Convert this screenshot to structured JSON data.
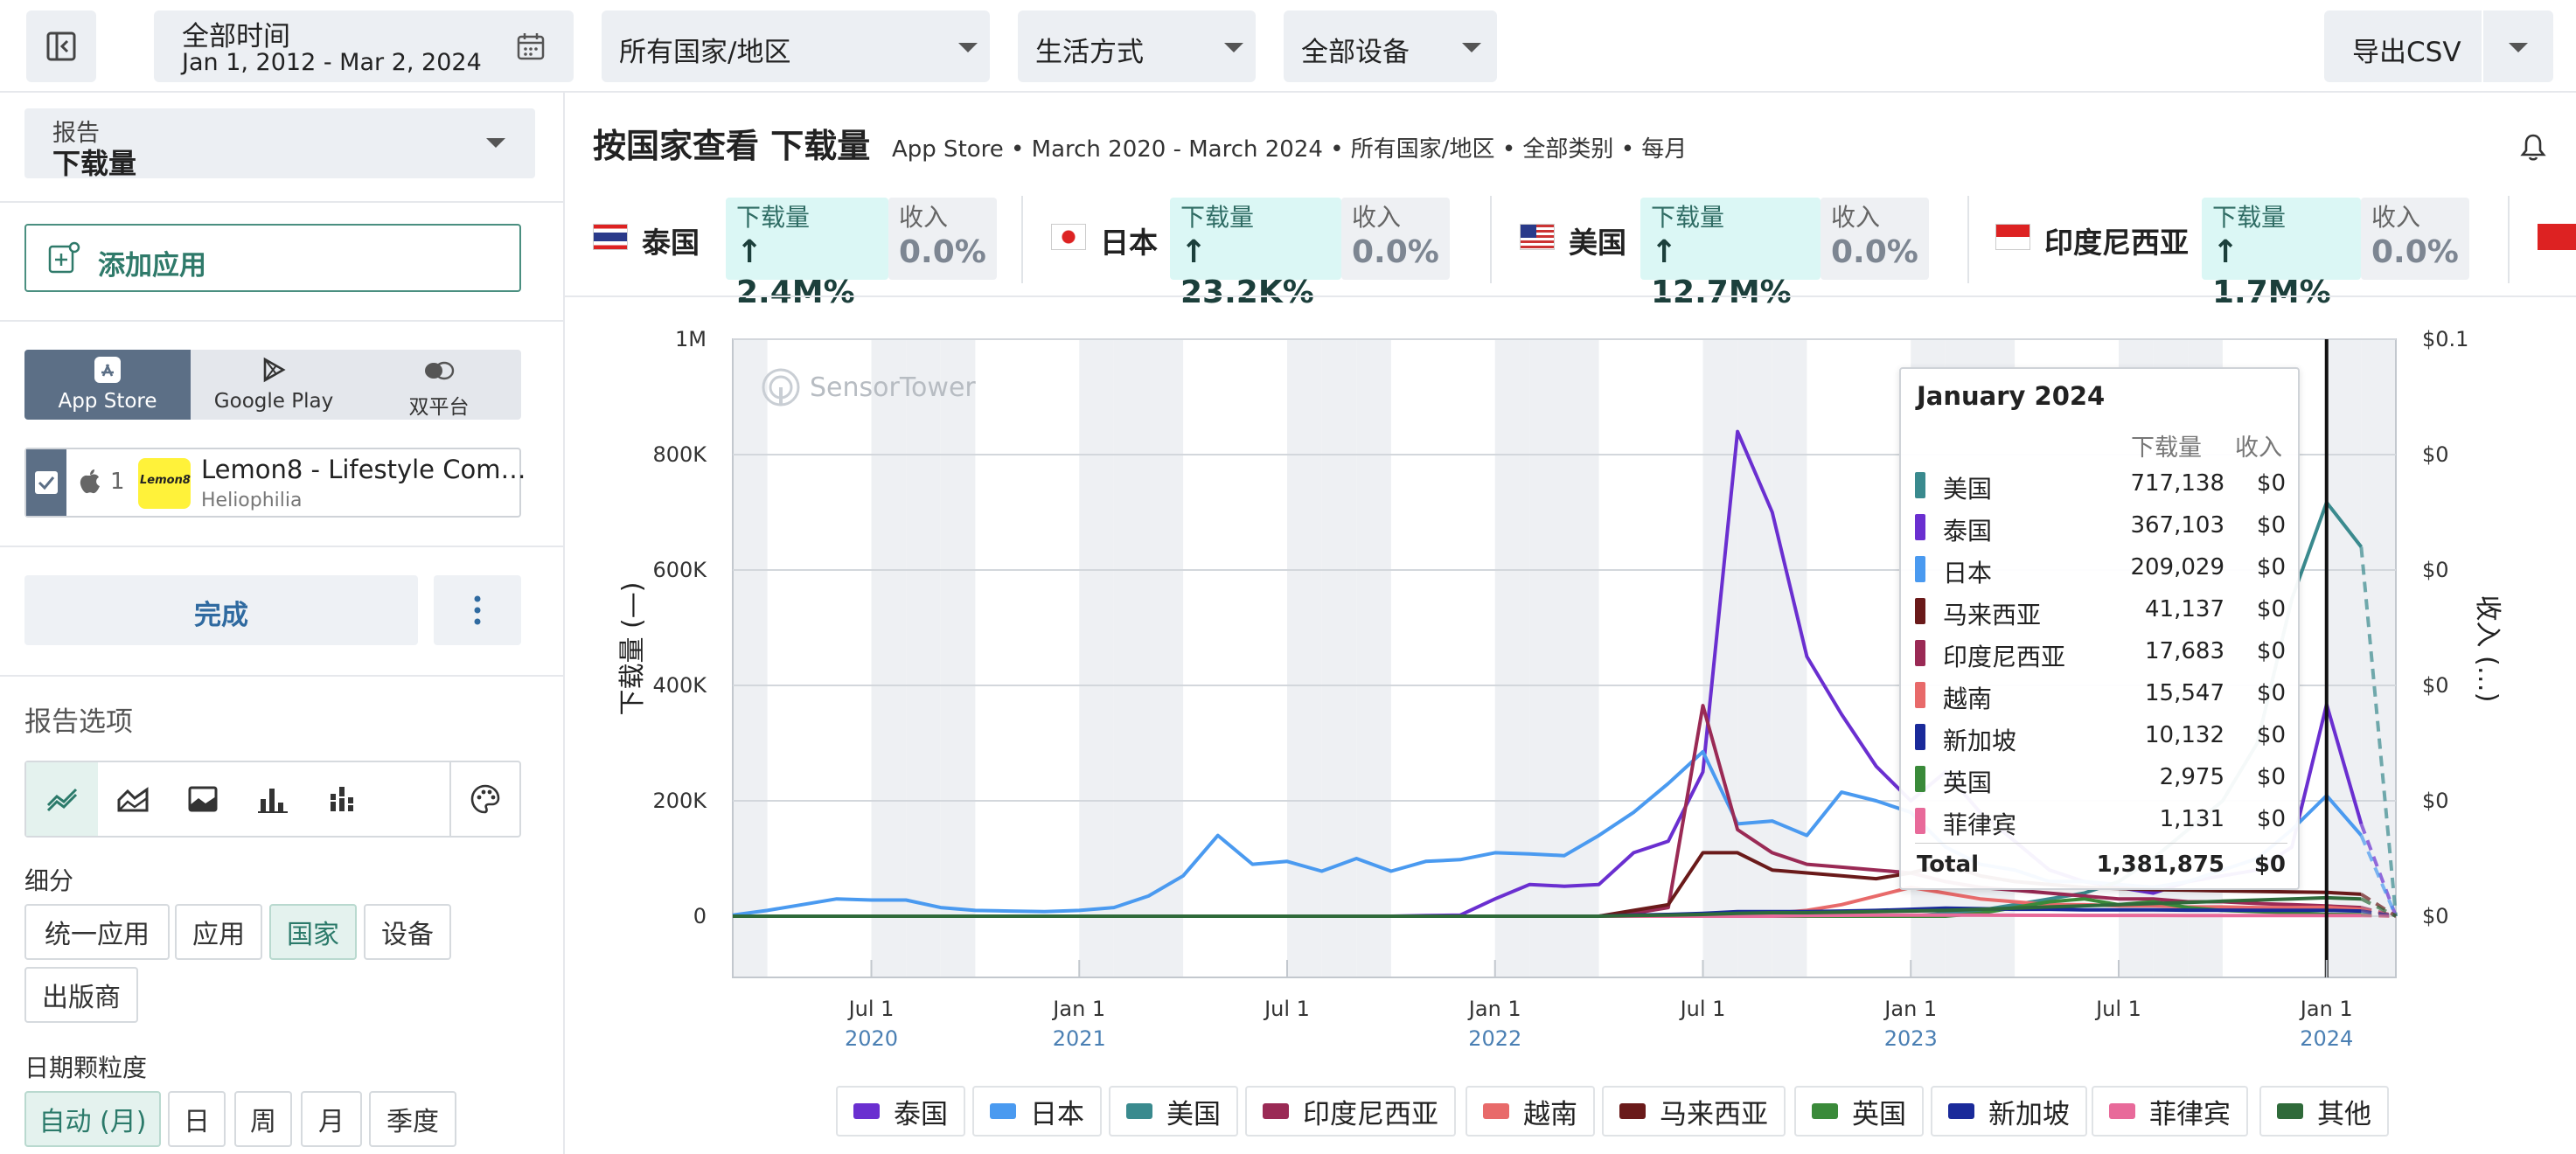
{
  "topbar": {
    "date_label": "全部时间",
    "date_range": "Jan 1, 2012 - Mar 2, 2024",
    "country": "所有国家/地区",
    "category": "生活方式",
    "devices": "全部设备",
    "export": "导出CSV"
  },
  "sidebar": {
    "report_label": "报告",
    "report_value": "下载量",
    "add_app": "添加应用",
    "platforms": [
      "App Store",
      "Google Play",
      "双平台"
    ],
    "app": {
      "index": "1",
      "name": "Lemon8 - Lifestyle Com…",
      "publisher": "Heliophilia",
      "logo_text": "Lemon8"
    },
    "done": "完成",
    "options_title": "报告选项",
    "breakdown_title": "细分",
    "breakdown": [
      "统一应用",
      "应用",
      "国家",
      "设备",
      "出版商"
    ],
    "breakdown_selected": "国家",
    "granularity_title": "日期颗粒度",
    "granularity": [
      "自动 (月)",
      "日",
      "周",
      "月",
      "季度"
    ],
    "granularity_selected": "自动 (月)"
  },
  "header": {
    "title": "按国家查看 下载量",
    "subtitle": "App Store • March 2020 - March 2024 • 所有国家/地区 • 全部类别 • 每月"
  },
  "kpis": [
    {
      "country": "泰国",
      "dl_label": "下载量",
      "dl_value": "2.4M%",
      "rev_label": "收入",
      "rev_value": "0.0%"
    },
    {
      "country": "日本",
      "dl_label": "下载量",
      "dl_value": "23.2K%",
      "rev_label": "收入",
      "rev_value": "0.0%"
    },
    {
      "country": "美国",
      "dl_label": "下载量",
      "dl_value": "12.7M%",
      "rev_label": "收入",
      "rev_value": "0.0%"
    },
    {
      "country": "印度尼西亚",
      "dl_label": "下载量",
      "dl_value": "1.7M%",
      "rev_label": "收入",
      "rev_value": "0.0%"
    }
  ],
  "watermark": "SensorTower",
  "colors": {
    "泰国": "#6a2fd0",
    "日本": "#4a9af0",
    "美国": "#3a8a8e",
    "印度尼西亚": "#9a2a55",
    "越南": "#e86a6a",
    "马来西亚": "#6a1a1a",
    "英国": "#3a8a3a",
    "新加坡": "#1a2a9a",
    "菲律宾": "#e86a9a",
    "其他": "#2f6a3a"
  },
  "chart_data": {
    "type": "line",
    "title": "",
    "ylabel": "下载量 (—)",
    "y2label": "收入 (…)",
    "ylim": [
      0,
      1000000
    ],
    "yticks": [
      "0",
      "200K",
      "400K",
      "600K",
      "800K",
      "1M"
    ],
    "y2ticks": [
      "$0",
      "$0",
      "$0",
      "$0",
      "$0",
      "$0.1"
    ],
    "xticks": [
      {
        "label": "Jul 1",
        "year": "2020"
      },
      {
        "label": "Jan 1",
        "year": "2021"
      },
      {
        "label": "Jul 1",
        "year": ""
      },
      {
        "label": "Jan 1",
        "year": "2022"
      },
      {
        "label": "Jul 1",
        "year": ""
      },
      {
        "label": "Jan 1",
        "year": "2023"
      },
      {
        "label": "Jul 1",
        "year": ""
      },
      {
        "label": "Jan 1",
        "year": "2024"
      }
    ],
    "x": [
      "2020-03",
      "2020-04",
      "2020-05",
      "2020-06",
      "2020-07",
      "2020-08",
      "2020-09",
      "2020-10",
      "2020-11",
      "2020-12",
      "2021-01",
      "2021-02",
      "2021-03",
      "2021-04",
      "2021-05",
      "2021-06",
      "2021-07",
      "2021-08",
      "2021-09",
      "2021-10",
      "2021-11",
      "2021-12",
      "2022-01",
      "2022-02",
      "2022-03",
      "2022-04",
      "2022-05",
      "2022-06",
      "2022-07",
      "2022-08",
      "2022-09",
      "2022-10",
      "2022-11",
      "2022-12",
      "2023-01",
      "2023-02",
      "2023-03",
      "2023-04",
      "2023-05",
      "2023-06",
      "2023-07",
      "2023-08",
      "2023-09",
      "2023-10",
      "2023-11",
      "2023-12",
      "2024-01",
      "2024-02",
      "2024-03"
    ],
    "series": [
      {
        "name": "泰国",
        "values": [
          0,
          0,
          0,
          0,
          0,
          0,
          0,
          0,
          0,
          0,
          0,
          0,
          0,
          0,
          0,
          0,
          0,
          0,
          0,
          0,
          1000,
          2000,
          30000,
          55000,
          52000,
          55000,
          110000,
          130000,
          250000,
          840000,
          700000,
          450000,
          350000,
          260000,
          200000,
          250000,
          180000,
          130000,
          80000,
          60000,
          50000,
          40000,
          60000,
          70000,
          80000,
          120000,
          367103,
          160000,
          0
        ]
      },
      {
        "name": "日本",
        "values": [
          2000,
          10000,
          20000,
          30000,
          28000,
          28000,
          15000,
          10000,
          9000,
          8000,
          10000,
          15000,
          35000,
          70000,
          140000,
          90000,
          95000,
          78000,
          100000,
          78000,
          95000,
          98000,
          110000,
          108000,
          105000,
          140000,
          180000,
          230000,
          285000,
          160000,
          165000,
          140000,
          215000,
          200000,
          180000,
          120000,
          90000,
          80000,
          60000,
          60000,
          55000,
          50000,
          60000,
          80000,
          100000,
          150000,
          209029,
          140000,
          0
        ]
      },
      {
        "name": "美国",
        "values": [
          0,
          0,
          0,
          0,
          0,
          0,
          0,
          0,
          0,
          0,
          0,
          0,
          0,
          0,
          0,
          0,
          0,
          0,
          0,
          0,
          0,
          0,
          0,
          0,
          0,
          0,
          0,
          0,
          0,
          0,
          0,
          0,
          0,
          0,
          0,
          5000,
          10000,
          20000,
          30000,
          40000,
          60000,
          100000,
          150000,
          200000,
          300000,
          550000,
          717138,
          640000,
          0
        ]
      },
      {
        "name": "印度尼西亚",
        "values": [
          0,
          0,
          0,
          0,
          0,
          0,
          0,
          0,
          0,
          0,
          0,
          0,
          0,
          0,
          0,
          0,
          0,
          0,
          0,
          0,
          0,
          0,
          0,
          0,
          0,
          0,
          5000,
          15000,
          365000,
          150000,
          110000,
          90000,
          85000,
          80000,
          75000,
          60000,
          50000,
          45000,
          40000,
          35000,
          30000,
          30000,
          25000,
          25000,
          22000,
          20000,
          17683,
          15000,
          0
        ]
      },
      {
        "name": "越南",
        "values": [
          0,
          0,
          0,
          0,
          0,
          0,
          0,
          0,
          0,
          0,
          0,
          0,
          0,
          0,
          0,
          0,
          0,
          0,
          0,
          0,
          0,
          0,
          0,
          0,
          0,
          0,
          0,
          0,
          0,
          0,
          5000,
          10000,
          20000,
          35000,
          50000,
          40000,
          30000,
          25000,
          20000,
          20000,
          18000,
          18000,
          16000,
          16000,
          15000,
          15000,
          15547,
          12000,
          0
        ]
      },
      {
        "name": "马来西亚",
        "values": [
          0,
          0,
          0,
          0,
          0,
          0,
          0,
          0,
          0,
          0,
          0,
          0,
          0,
          0,
          0,
          0,
          0,
          0,
          0,
          0,
          0,
          0,
          0,
          0,
          0,
          0,
          10000,
          20000,
          110000,
          110000,
          80000,
          75000,
          70000,
          65000,
          75000,
          90000,
          70000,
          60000,
          55000,
          50000,
          48000,
          46000,
          45000,
          44000,
          43000,
          42000,
          41137,
          38000,
          0
        ]
      },
      {
        "name": "英国",
        "values": [
          0,
          0,
          0,
          0,
          0,
          0,
          0,
          0,
          0,
          0,
          0,
          0,
          0,
          0,
          0,
          0,
          0,
          0,
          0,
          0,
          0,
          0,
          0,
          0,
          0,
          0,
          0,
          0,
          0,
          0,
          0,
          0,
          0,
          0,
          0,
          0,
          5000,
          15000,
          25000,
          30000,
          20000,
          25000,
          15000,
          10000,
          8000,
          6000,
          2975,
          2500,
          0
        ]
      },
      {
        "name": "新加坡",
        "values": [
          0,
          0,
          0,
          0,
          0,
          0,
          0,
          0,
          0,
          0,
          0,
          0,
          0,
          0,
          0,
          0,
          0,
          0,
          0,
          0,
          0,
          0,
          0,
          0,
          0,
          0,
          2000,
          3000,
          5000,
          8000,
          8000,
          8000,
          9000,
          10000,
          12000,
          14000,
          13000,
          12000,
          12000,
          11000,
          11000,
          11000,
          10500,
          10500,
          10300,
          10200,
          10132,
          9000,
          0
        ]
      },
      {
        "name": "菲律宾",
        "values": [
          0,
          0,
          0,
          0,
          0,
          0,
          0,
          0,
          0,
          0,
          0,
          0,
          0,
          0,
          0,
          0,
          0,
          0,
          0,
          0,
          0,
          0,
          0,
          0,
          0,
          0,
          0,
          0,
          0,
          0,
          0,
          1000,
          1500,
          2000,
          2000,
          2000,
          1800,
          1600,
          1500,
          1400,
          1300,
          1300,
          1200,
          1200,
          1200,
          1150,
          1131,
          1000,
          0
        ]
      },
      {
        "name": "其他",
        "values": [
          0,
          0,
          0,
          0,
          0,
          0,
          0,
          0,
          0,
          0,
          0,
          0,
          0,
          0,
          0,
          0,
          0,
          0,
          0,
          0,
          0,
          0,
          0,
          0,
          0,
          0,
          1000,
          2000,
          3000,
          5000,
          6000,
          6000,
          7000,
          8000,
          9000,
          10000,
          12000,
          14000,
          16000,
          18000,
          20000,
          22000,
          24000,
          26000,
          28000,
          30000,
          32000,
          30000,
          0
        ]
      }
    ],
    "legend": [
      "泰国",
      "日本",
      "美国",
      "印度尼西亚",
      "越南",
      "马来西亚",
      "英国",
      "新加坡",
      "菲律宾",
      "其他"
    ],
    "tooltip": {
      "title": "January 2024",
      "col_downloads": "下载量",
      "col_revenue": "收入",
      "rows": [
        {
          "name": "美国",
          "downloads": "717,138",
          "revenue": "$0"
        },
        {
          "name": "泰国",
          "downloads": "367,103",
          "revenue": "$0"
        },
        {
          "name": "日本",
          "downloads": "209,029",
          "revenue": "$0"
        },
        {
          "name": "马来西亚",
          "downloads": "41,137",
          "revenue": "$0"
        },
        {
          "name": "印度尼西亚",
          "downloads": "17,683",
          "revenue": "$0"
        },
        {
          "name": "越南",
          "downloads": "15,547",
          "revenue": "$0"
        },
        {
          "name": "新加坡",
          "downloads": "10,132",
          "revenue": "$0"
        },
        {
          "name": "英国",
          "downloads": "2,975",
          "revenue": "$0"
        },
        {
          "name": "菲律宾",
          "downloads": "1,131",
          "revenue": "$0"
        }
      ],
      "total_label": "Total",
      "total_downloads": "1,381,875",
      "total_revenue": "$0"
    }
  }
}
